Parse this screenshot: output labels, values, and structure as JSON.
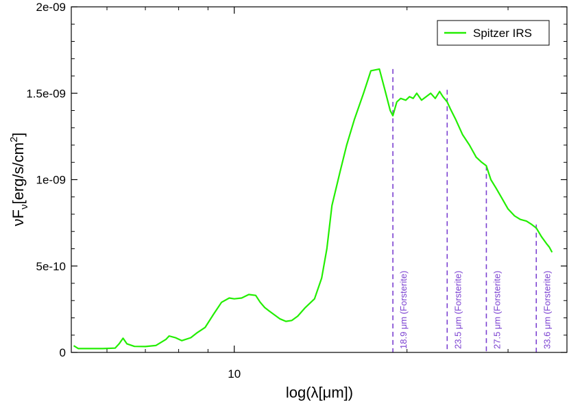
{
  "chart_data": {
    "type": "line",
    "title": "",
    "xlabel": "log(λ[μm])",
    "ylabel": "νFν[erg/s/cm2]",
    "ylabel_parts": {
      "base": "νF",
      "sub": "ν",
      "mid": "[erg/s/cm",
      "sup": "2",
      "end": "]"
    },
    "x_scale": "log",
    "xlim": [
      5.2,
      38.0
    ],
    "ylim": [
      0,
      2e-09
    ],
    "x_ticks": [
      {
        "value": 10,
        "label": "10"
      }
    ],
    "y_ticks": [
      {
        "value": 0,
        "label": "0"
      },
      {
        "value": 5e-10,
        "label": "5e-10"
      },
      {
        "value": 1e-09,
        "label": "1e-09"
      },
      {
        "value": 1.5e-09,
        "label": "1.5e-09"
      },
      {
        "value": 2e-09,
        "label": "2e-09"
      }
    ],
    "grid": false,
    "legend_position": "top-right",
    "colors": {
      "series": "#22ee00",
      "annotation": "#7a3fd0"
    },
    "series": [
      {
        "name": "Spitzer IRS",
        "x": [
          5.25,
          5.35,
          5.6,
          5.9,
          6.2,
          6.3,
          6.4,
          6.5,
          6.7,
          7.0,
          7.3,
          7.6,
          7.7,
          7.9,
          8.1,
          8.4,
          8.6,
          8.9,
          9.2,
          9.5,
          9.8,
          10.0,
          10.3,
          10.6,
          10.9,
          11.1,
          11.3,
          11.5,
          12.0,
          12.3,
          12.6,
          12.9,
          13.3,
          13.8,
          14.2,
          14.5,
          14.8,
          15.3,
          15.7,
          16.2,
          16.8,
          17.3,
          17.9,
          18.3,
          18.7,
          18.9,
          19.2,
          19.5,
          19.9,
          20.2,
          20.5,
          20.8,
          21.2,
          21.6,
          22.0,
          22.4,
          22.8,
          23.1,
          23.5,
          23.8,
          24.3,
          25.0,
          25.7,
          26.4,
          27.0,
          27.5,
          28.0,
          28.6,
          29.3,
          30.0,
          30.8,
          31.5,
          32.3,
          33.0,
          33.6,
          34.3,
          35.0,
          35.4,
          35.8
        ],
        "y": [
          3.9e-11,
          2.2e-11,
          2.2e-11,
          2.2e-11,
          2.5e-11,
          5e-11,
          8.2e-11,
          5e-11,
          3.5e-11,
          3.4e-11,
          4e-11,
          7.5e-11,
          9.5e-11,
          8.5e-11,
          6.8e-11,
          8.5e-11,
          1.12e-10,
          1.45e-10,
          2.2e-10,
          2.9e-10,
          3.15e-10,
          3.1e-10,
          3.15e-10,
          3.35e-10,
          3.3e-10,
          2.9e-10,
          2.6e-10,
          2.4e-10,
          1.95e-10,
          1.8e-10,
          1.85e-10,
          2.1e-10,
          2.6e-10,
          3.1e-10,
          4.3e-10,
          6e-10,
          8.5e-10,
          1.05e-09,
          1.2e-09,
          1.35e-09,
          1.5e-09,
          1.63e-09,
          1.64e-09,
          1.52e-09,
          1.4e-09,
          1.37e-09,
          1.45e-09,
          1.47e-09,
          1.46e-09,
          1.48e-09,
          1.47e-09,
          1.5e-09,
          1.46e-09,
          1.48e-09,
          1.5e-09,
          1.47e-09,
          1.51e-09,
          1.48e-09,
          1.45e-09,
          1.41e-09,
          1.35e-09,
          1.26e-09,
          1.2e-09,
          1.13e-09,
          1.1e-09,
          1.08e-09,
          1e-09,
          9.5e-10,
          8.9e-10,
          8.3e-10,
          7.9e-10,
          7.7e-10,
          7.6e-10,
          7.4e-10,
          7.2e-10,
          6.7e-10,
          6.3e-10,
          6.1e-10,
          5.8e-10
        ]
      }
    ],
    "annotations": [
      {
        "x": 18.9,
        "y": 1.64e-09,
        "label": "18.9 μm (Forsterite)"
      },
      {
        "x": 23.5,
        "y": 1.52e-09,
        "label": "23.5 μm (Forsterite)"
      },
      {
        "x": 27.5,
        "y": 1.08e-09,
        "label": "27.5 μm (Forsterite)"
      },
      {
        "x": 33.6,
        "y": 7.4e-10,
        "label": "33.6 μm (Forsterite)"
      }
    ]
  }
}
